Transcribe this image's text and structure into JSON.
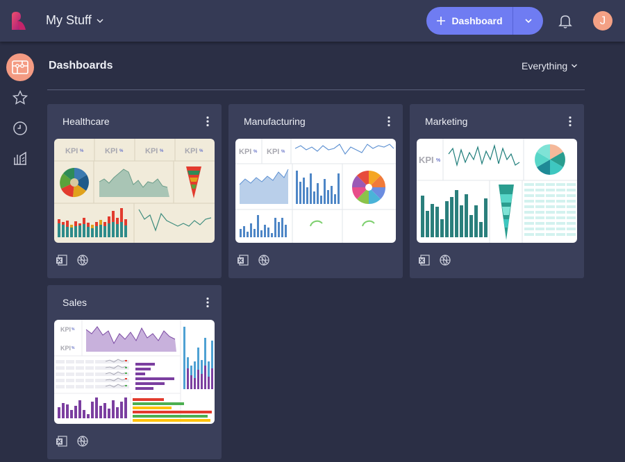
{
  "header": {
    "app_title": "My Stuff",
    "dashboard_button_label": "Dashboard",
    "avatar_initial": "J"
  },
  "sidebar": {
    "items": [
      {
        "icon": "dashboards-icon",
        "active": true
      },
      {
        "icon": "star-icon",
        "active": false
      },
      {
        "icon": "clock-icon",
        "active": false
      },
      {
        "icon": "library-icon",
        "active": false
      }
    ]
  },
  "main": {
    "section_title": "Dashboards",
    "filter_label": "Everything",
    "cards": [
      {
        "title": "Healthcare",
        "thumbnail_bg": "#f1ebda",
        "source_icons": [
          "excel-icon",
          "web-icon"
        ]
      },
      {
        "title": "Manufacturing",
        "thumbnail_bg": "#ffffff",
        "source_icons": [
          "excel-icon",
          "web-icon"
        ]
      },
      {
        "title": "Marketing",
        "thumbnail_bg": "#ffffff",
        "source_icons": [
          "excel-icon",
          "web-icon"
        ]
      },
      {
        "title": "Sales",
        "thumbnail_bg": "#ffffff",
        "source_icons": [
          "excel-icon",
          "web-icon"
        ]
      }
    ]
  },
  "thumbnail_text": {
    "kpi": "KPI",
    "pct": "%"
  },
  "colors": {
    "accent": "#6f7cf2",
    "active_nav": "#f49b83",
    "topbar": "#353a55",
    "background": "#2b2f45",
    "card": "#3a3f5a"
  }
}
